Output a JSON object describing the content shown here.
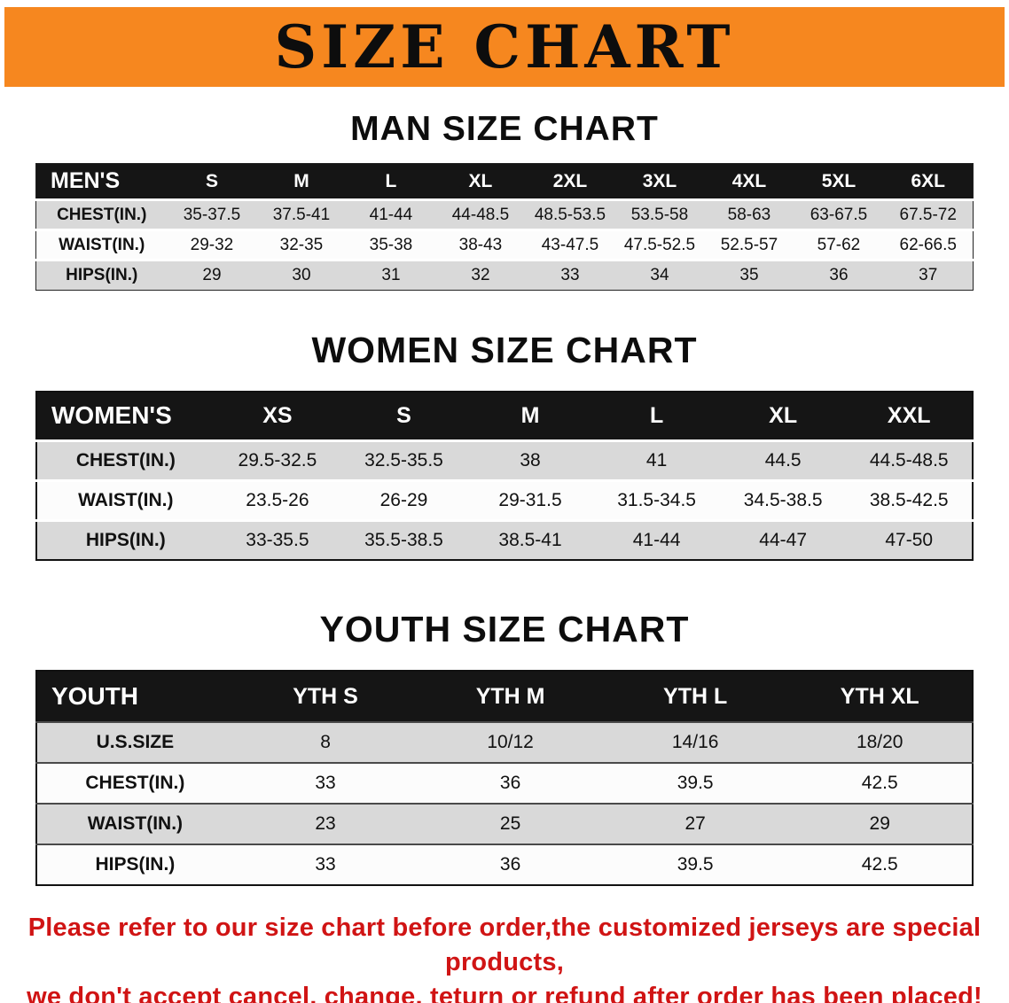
{
  "banner": {
    "title": "SIZE CHART",
    "bg_color": "#f6871f"
  },
  "sections": [
    {
      "heading": "MAN SIZE CHART",
      "table": {
        "corner": "MEN'S",
        "columns": [
          "S",
          "M",
          "L",
          "XL",
          "2XL",
          "3XL",
          "4XL",
          "5XL",
          "6XL"
        ],
        "rows": [
          {
            "label": "CHEST(IN.)",
            "values": [
              "35-37.5",
              "37.5-41",
              "41-44",
              "44-48.5",
              "48.5-53.5",
              "53.5-58",
              "58-63",
              "63-67.5",
              "67.5-72"
            ]
          },
          {
            "label": "WAIST(IN.)",
            "values": [
              "29-32",
              "32-35",
              "35-38",
              "38-43",
              "43-47.5",
              "47.5-52.5",
              "52.5-57",
              "57-62",
              "62-66.5"
            ]
          },
          {
            "label": "HIPS(IN.)",
            "values": [
              "29",
              "30",
              "31",
              "32",
              "33",
              "34",
              "35",
              "36",
              "37"
            ]
          }
        ]
      }
    },
    {
      "heading": "WOMEN SIZE CHART",
      "table": {
        "corner": "WOMEN'S",
        "columns": [
          "XS",
          "S",
          "M",
          "L",
          "XL",
          "XXL"
        ],
        "rows": [
          {
            "label": "CHEST(IN.)",
            "values": [
              "29.5-32.5",
              "32.5-35.5",
              "38",
              "41",
              "44.5",
              "44.5-48.5"
            ]
          },
          {
            "label": "WAIST(IN.)",
            "values": [
              "23.5-26",
              "26-29",
              "29-31.5",
              "31.5-34.5",
              "34.5-38.5",
              "38.5-42.5"
            ]
          },
          {
            "label": "HIPS(IN.)",
            "values": [
              "33-35.5",
              "35.5-38.5",
              "38.5-41",
              "41-44",
              "44-47",
              "47-50"
            ]
          }
        ]
      }
    },
    {
      "heading": "YOUTH SIZE CHART",
      "table": {
        "corner": "YOUTH",
        "columns": [
          "YTH S",
          "YTH M",
          "YTH L",
          "YTH XL"
        ],
        "rows": [
          {
            "label": "U.S.SIZE",
            "values": [
              "8",
              "10/12",
              "14/16",
              "18/20"
            ]
          },
          {
            "label": "CHEST(IN.)",
            "values": [
              "33",
              "36",
              "39.5",
              "42.5"
            ]
          },
          {
            "label": "WAIST(IN.)",
            "values": [
              "23",
              "25",
              "27",
              "29"
            ]
          },
          {
            "label": "HIPS(IN.)",
            "values": [
              "33",
              "36",
              "39.5",
              "42.5"
            ]
          }
        ]
      }
    }
  ],
  "footer": {
    "line1": "Please refer to our size chart before order,the customized jerseys are special products,",
    "line2": "we don't accept cancel, change, teturn or refund after order has been placed!",
    "text_color": "#d01414"
  }
}
